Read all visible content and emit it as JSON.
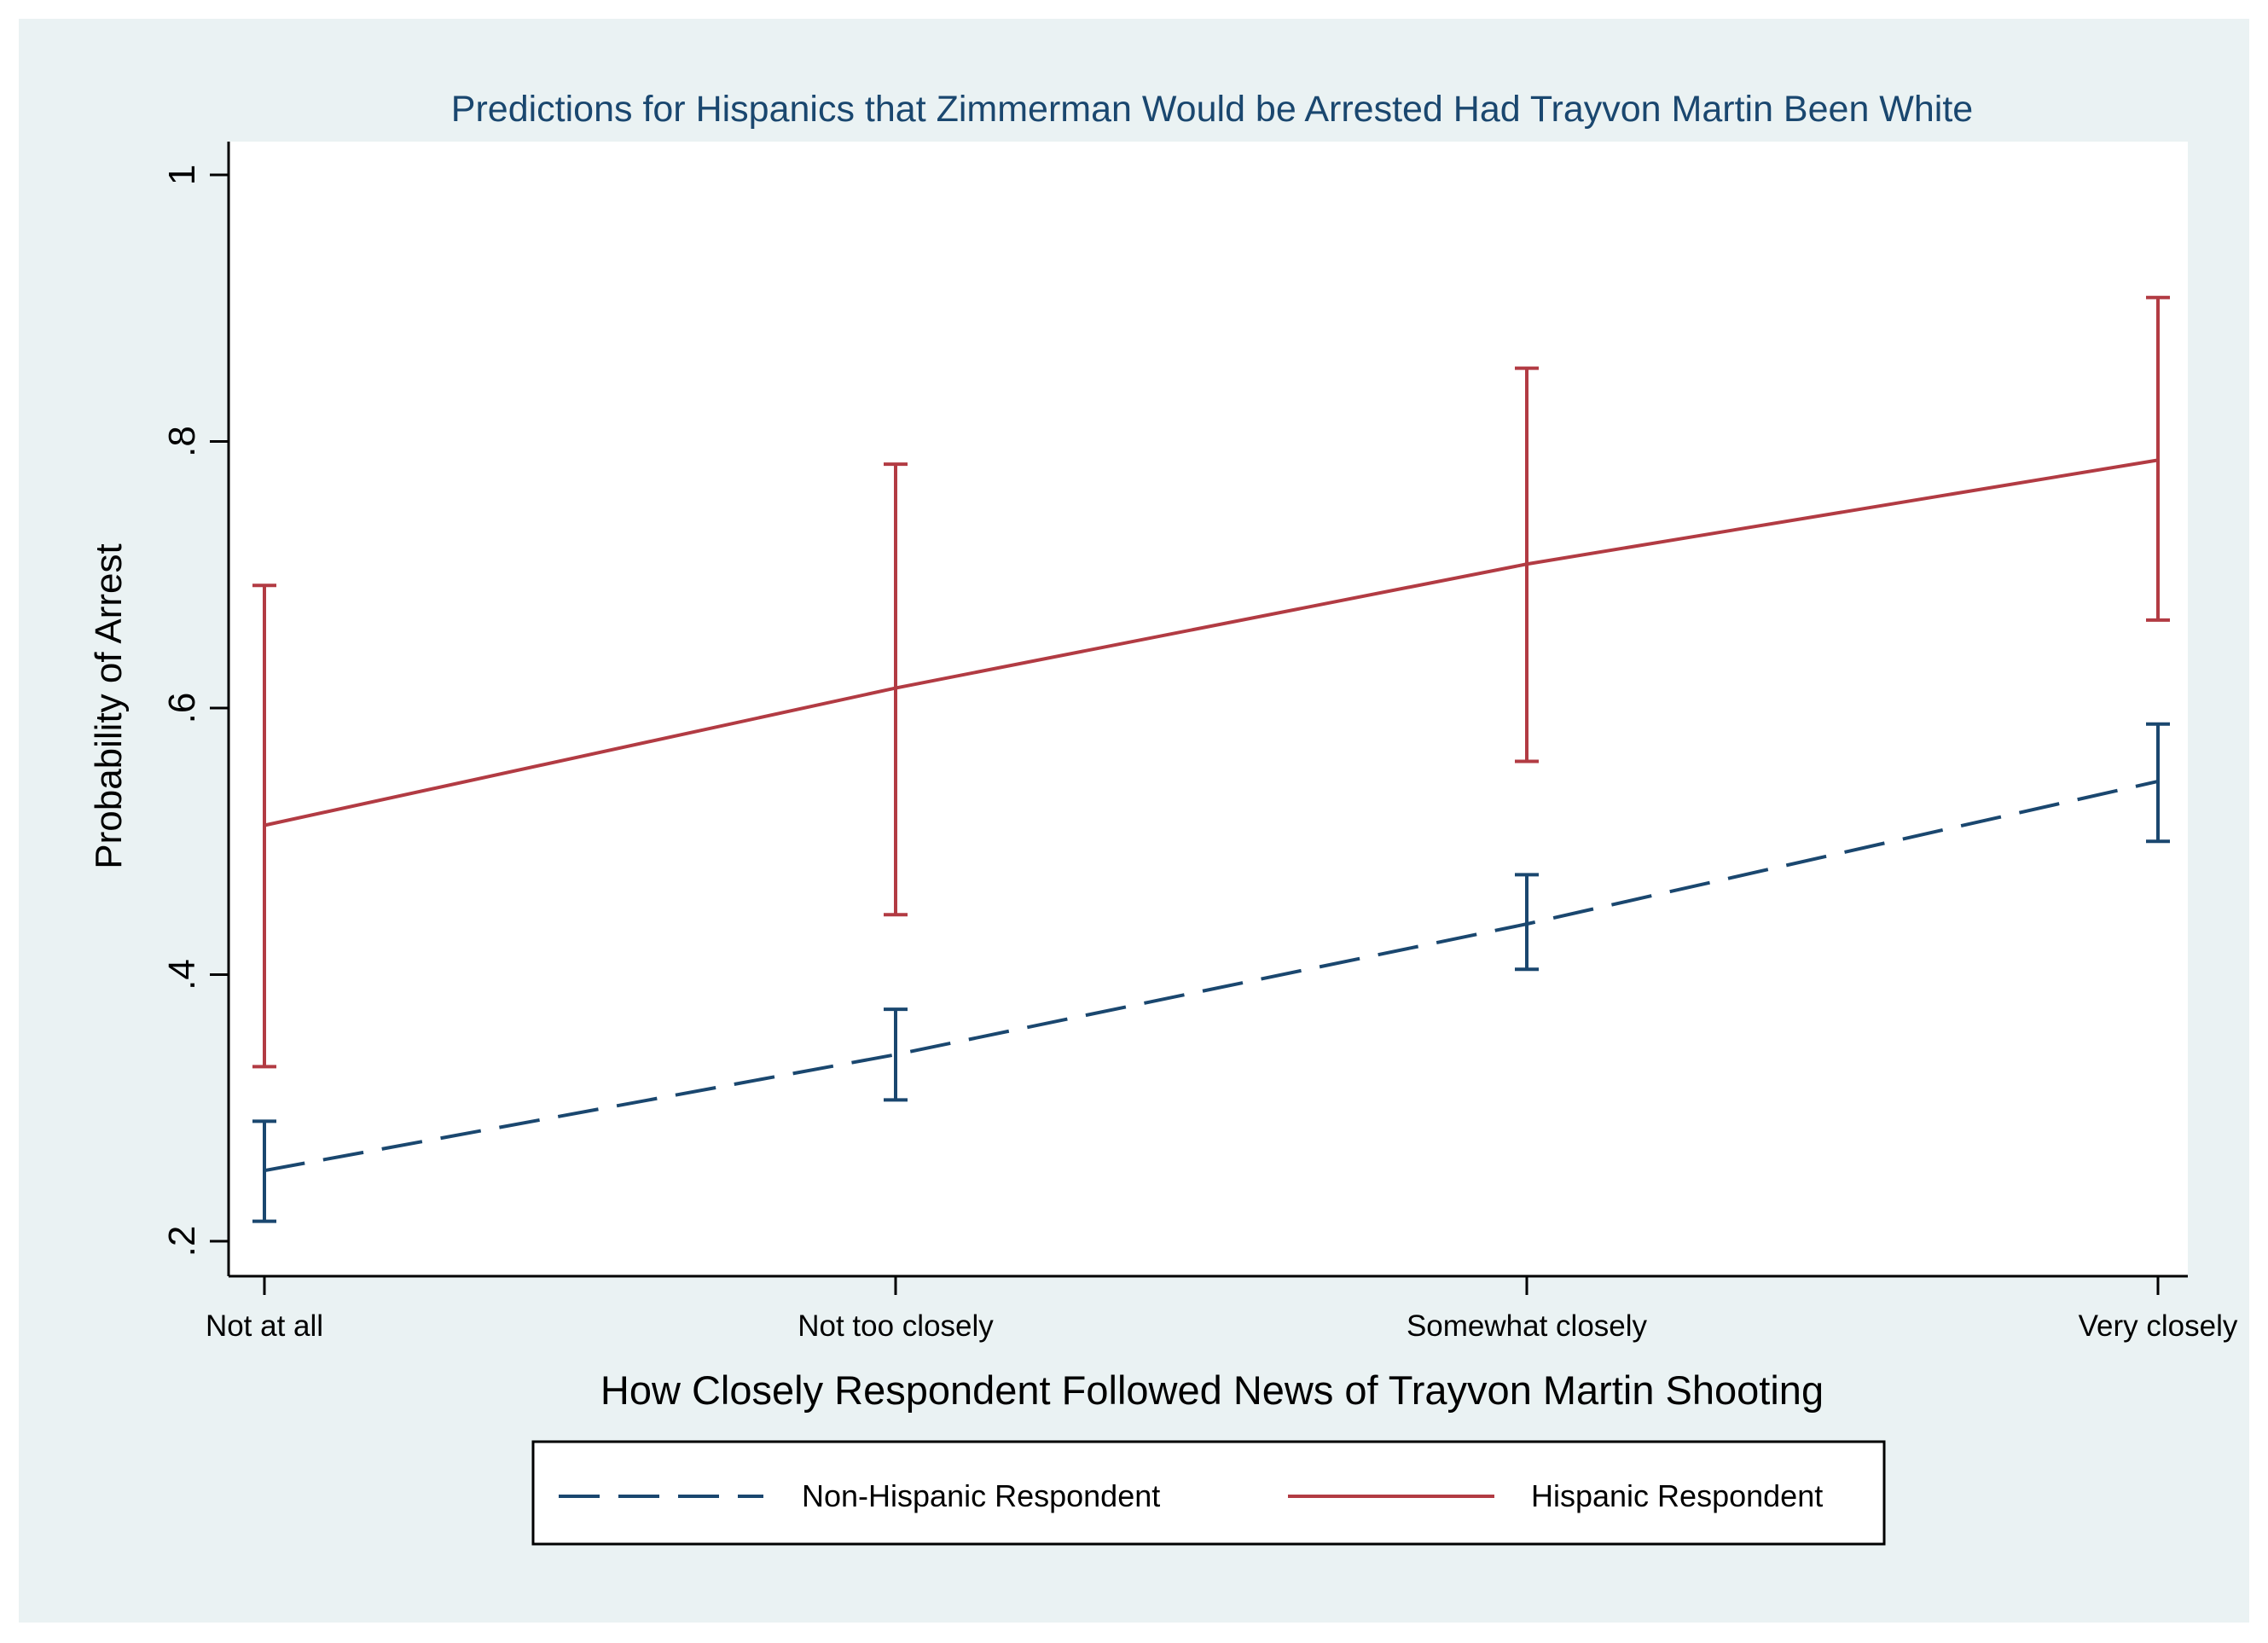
{
  "chart_data": {
    "type": "line",
    "title": "Predictions for Hispanics that Zimmerman Would be Arrested Had Trayvon Martin Been White",
    "xlabel": "How Closely Respondent Followed News of Trayvon Martin Shooting",
    "ylabel": "Probability of Arrest",
    "categories": [
      "Not at all",
      "Not too closely",
      "Somewhat closely",
      "Very closely"
    ],
    "ylim": [
      0.2,
      1.0
    ],
    "yticks": [
      {
        "value": 0.2,
        "label": ".2"
      },
      {
        "value": 0.4,
        "label": ".4"
      },
      {
        "value": 0.6,
        "label": ".6"
      },
      {
        "value": 0.8,
        "label": ".8"
      },
      {
        "value": 1.0,
        "label": "1"
      }
    ],
    "grid": false,
    "legend_position": "bottom",
    "series": [
      {
        "name": "Non-Hispanic Respondent",
        "style": "dashed",
        "color": "#1a476f",
        "values": [
          0.253,
          0.34,
          0.438,
          0.545
        ],
        "ci_low": [
          0.215,
          0.306,
          0.404,
          0.5
        ],
        "ci_high": [
          0.29,
          0.374,
          0.475,
          0.588
        ]
      },
      {
        "name": "Hispanic Respondent",
        "style": "solid",
        "color": "#b23b43",
        "values": [
          0.512,
          0.615,
          0.708,
          0.786
        ],
        "ci_low": [
          0.331,
          0.445,
          0.56,
          0.666
        ],
        "ci_high": [
          0.692,
          0.783,
          0.855,
          0.908
        ]
      }
    ]
  }
}
